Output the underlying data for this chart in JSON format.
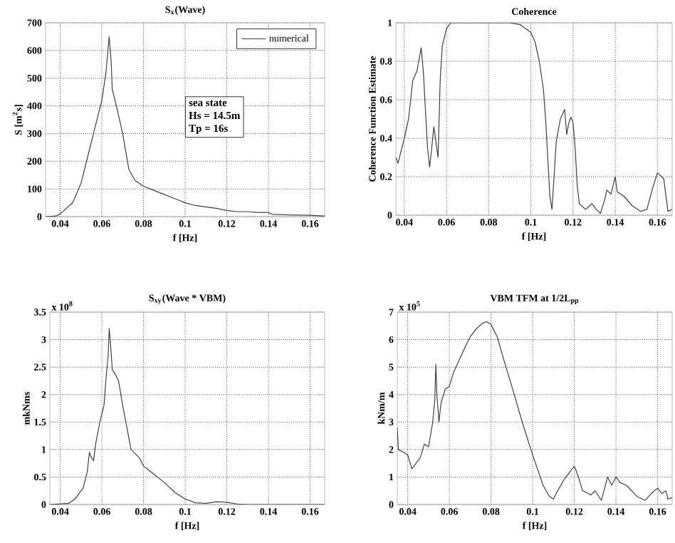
{
  "chart_data": [
    {
      "type": "line",
      "title": "S$_{x}$(Wave)",
      "xlabel": "f [Hz]",
      "ylabel": "S [m$^{2}$s]",
      "xlim": [
        0.033,
        0.167
      ],
      "ylim": [
        0,
        700
      ],
      "xticks": [
        0.04,
        0.06,
        0.08,
        0.1,
        0.12,
        0.14,
        0.16
      ],
      "yticks": [
        0,
        100,
        200,
        300,
        400,
        500,
        600,
        700
      ],
      "grid": true,
      "legend": "top right",
      "annotations": [
        "sea state",
        "Hs = 14.5m",
        "Tp = 16s"
      ],
      "series": [
        {
          "name": "numerical",
          "color": "#404040",
          "x": [
            0.033,
            0.038,
            0.04,
            0.043,
            0.046,
            0.05,
            0.054,
            0.057,
            0.06,
            0.062,
            0.0635,
            0.0645,
            0.065,
            0.067,
            0.07,
            0.073,
            0.076,
            0.08,
            0.085,
            0.09,
            0.095,
            0.1,
            0.105,
            0.11,
            0.115,
            0.12,
            0.125,
            0.13,
            0.135,
            0.14,
            0.142,
            0.15,
            0.16,
            0.167
          ],
          "values": [
            0,
            2,
            10,
            30,
            50,
            120,
            240,
            330,
            420,
            520,
            650,
            560,
            460,
            400,
            300,
            170,
            130,
            110,
            95,
            80,
            65,
            50,
            40,
            35,
            30,
            22,
            18,
            18,
            15,
            15,
            8,
            6,
            5,
            2
          ]
        }
      ]
    },
    {
      "type": "line",
      "title": "Coherence",
      "xlabel": "f [Hz]",
      "ylabel": "Coherence Function Estimate",
      "xlim": [
        0.036,
        0.167
      ],
      "ylim": [
        0,
        1
      ],
      "xticks": [
        0.04,
        0.06,
        0.08,
        0.1,
        0.12,
        0.14,
        0.16
      ],
      "yticks": [
        0,
        0.2,
        0.4,
        0.6,
        0.8,
        1
      ],
      "grid": true,
      "series": [
        {
          "color": "#404040",
          "x": [
            0.036,
            0.037,
            0.04,
            0.042,
            0.044,
            0.046,
            0.048,
            0.049,
            0.05,
            0.051,
            0.052,
            0.053,
            0.054,
            0.055,
            0.056,
            0.057,
            0.058,
            0.06,
            0.062,
            0.064,
            0.09,
            0.095,
            0.1,
            0.102,
            0.104,
            0.106,
            0.107,
            0.108,
            0.109,
            0.11,
            0.111,
            0.112,
            0.114,
            0.116,
            0.117,
            0.118,
            0.119,
            0.12,
            0.121,
            0.122,
            0.123,
            0.126,
            0.129,
            0.131,
            0.133,
            0.135,
            0.136,
            0.138,
            0.14,
            0.141,
            0.144,
            0.148,
            0.152,
            0.155,
            0.158,
            0.16,
            0.162,
            0.163,
            0.165,
            0.167
          ],
          "values": [
            0.3,
            0.27,
            0.4,
            0.5,
            0.7,
            0.75,
            0.87,
            0.75,
            0.55,
            0.35,
            0.25,
            0.35,
            0.46,
            0.38,
            0.3,
            0.7,
            0.88,
            0.97,
            1.0,
            1.0,
            1.0,
            0.99,
            0.95,
            0.9,
            0.8,
            0.65,
            0.5,
            0.3,
            0.1,
            0.03,
            0.2,
            0.38,
            0.5,
            0.55,
            0.42,
            0.48,
            0.51,
            0.48,
            0.35,
            0.15,
            0.06,
            0.03,
            0.06,
            0.03,
            0.01,
            0.08,
            0.13,
            0.11,
            0.2,
            0.12,
            0.1,
            0.05,
            0.02,
            0.03,
            0.15,
            0.22,
            0.2,
            0.19,
            0.02,
            0.03
          ]
        }
      ]
    },
    {
      "type": "line",
      "title": "S$_{xy}$(Wave * VBM)",
      "xlabel": "f [Hz]",
      "ylabel": "mkNms",
      "xlim": [
        0.035,
        0.167
      ],
      "ylim": [
        0,
        3.5
      ],
      "xticks": [
        0.04,
        0.06,
        0.08,
        0.1,
        0.12,
        0.14,
        0.16
      ],
      "yticks": [
        0,
        0.5,
        1,
        1.5,
        2,
        2.5,
        3,
        3.5
      ],
      "grid": true,
      "annotations": [
        "x 10$^{8}$"
      ],
      "series": [
        {
          "color": "#404040",
          "x": [
            0.035,
            0.044,
            0.047,
            0.049,
            0.051,
            0.053,
            0.054,
            0.055,
            0.056,
            0.057,
            0.059,
            0.061,
            0.062,
            0.063,
            0.0635,
            0.064,
            0.065,
            0.066,
            0.068,
            0.07,
            0.072,
            0.074,
            0.078,
            0.08,
            0.085,
            0.09,
            0.095,
            0.1,
            0.105,
            0.11,
            0.115,
            0.12,
            0.125,
            0.13,
            0.167
          ],
          "values": [
            0,
            0.02,
            0.1,
            0.2,
            0.3,
            0.6,
            0.95,
            0.85,
            0.8,
            1.1,
            1.5,
            1.8,
            2.3,
            2.7,
            3.2,
            3.0,
            2.45,
            2.4,
            2.25,
            1.8,
            1.4,
            1.0,
            0.85,
            0.7,
            0.55,
            0.4,
            0.22,
            0.1,
            0.03,
            0.02,
            0.05,
            0.04,
            0.01,
            0,
            0
          ]
        }
      ]
    },
    {
      "type": "line",
      "title": "VBM TFM at 1/2L$_{pp}$",
      "xlabel": "f [Hz]",
      "ylabel": "kNm/m",
      "xlim": [
        0.035,
        0.167
      ],
      "ylim": [
        0,
        7
      ],
      "xticks": [
        0.04,
        0.06,
        0.08,
        0.1,
        0.12,
        0.14,
        0.16
      ],
      "yticks": [
        0,
        1,
        2,
        3,
        4,
        5,
        6,
        7
      ],
      "grid": true,
      "annotations": [
        "x 10$^{5}$"
      ],
      "series": [
        {
          "color": "#404040",
          "x": [
            0.035,
            0.0355,
            0.038,
            0.04,
            0.042,
            0.044,
            0.046,
            0.048,
            0.05,
            0.052,
            0.053,
            0.0535,
            0.054,
            0.055,
            0.056,
            0.058,
            0.06,
            0.062,
            0.065,
            0.068,
            0.07,
            0.073,
            0.076,
            0.078,
            0.08,
            0.083,
            0.086,
            0.09,
            0.095,
            0.1,
            0.105,
            0.108,
            0.11,
            0.112,
            0.115,
            0.117,
            0.12,
            0.122,
            0.124,
            0.128,
            0.13,
            0.133,
            0.136,
            0.138,
            0.14,
            0.142,
            0.145,
            0.15,
            0.154,
            0.157,
            0.16,
            0.162,
            0.164,
            0.165,
            0.167
          ],
          "values": [
            2.8,
            2.0,
            1.9,
            1.8,
            1.3,
            1.5,
            1.7,
            2.2,
            2.1,
            3.0,
            3.8,
            5.1,
            4.0,
            3.0,
            3.7,
            4.2,
            4.3,
            4.8,
            5.3,
            5.8,
            6.1,
            6.4,
            6.6,
            6.65,
            6.55,
            6.1,
            5.3,
            4.3,
            3.0,
            1.8,
            0.7,
            0.3,
            0.2,
            0.5,
            0.9,
            1.1,
            1.4,
            1.0,
            0.5,
            0.35,
            0.5,
            0.15,
            1.0,
            0.7,
            1.0,
            0.8,
            0.7,
            0.3,
            0.15,
            0.4,
            0.6,
            0.4,
            0.5,
            0.2,
            0.25
          ]
        }
      ]
    }
  ]
}
